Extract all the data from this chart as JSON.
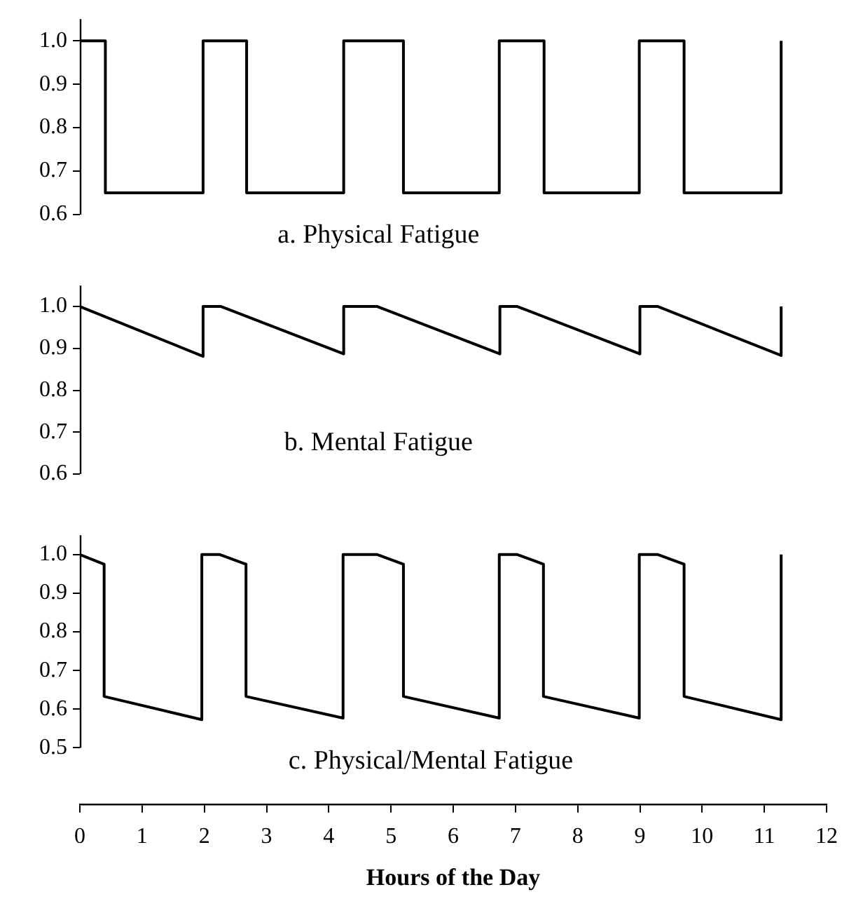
{
  "chart_data": [
    {
      "type": "line",
      "title": "a. Physical Fatigue",
      "x": [
        0,
        0.41,
        0.41,
        1.98,
        1.98,
        2.68,
        2.68,
        4.24,
        4.24,
        5.2,
        5.2,
        6.74,
        6.74,
        7.46,
        7.46,
        8.99,
        8.99,
        9.71,
        9.71,
        11.27,
        11.27
      ],
      "series": [
        {
          "color": "#000000",
          "values": [
            1.0,
            1.0,
            0.65,
            0.65,
            1.0,
            1.0,
            0.65,
            0.65,
            1.0,
            1.0,
            0.65,
            0.65,
            1.0,
            1.0,
            0.65,
            0.65,
            1.0,
            1.0,
            0.65,
            0.65,
            1.0
          ]
        }
      ],
      "xlim": [
        0,
        12
      ],
      "xticks": [
        0,
        1,
        2,
        3,
        4,
        5,
        6,
        7,
        8,
        9,
        10,
        11,
        12
      ],
      "ylim": [
        0.6,
        1.05
      ],
      "yticks": [
        {
          "value": 0.6,
          "label": "0.6"
        },
        {
          "value": 0.7,
          "label": "0.7"
        },
        {
          "value": 0.8,
          "label": "0.8"
        },
        {
          "value": 0.9,
          "label": "0.9"
        },
        {
          "value": 1.0,
          "label": "1.0"
        }
      ],
      "tick_labels": "y",
      "marker": "none",
      "grid": false,
      "legend": false
    },
    {
      "type": "line",
      "title": "b. Mental Fatigue",
      "x": [
        0,
        1.98,
        1.98,
        2.27,
        4.24,
        4.24,
        4.78,
        6.75,
        6.75,
        7.03,
        9.0,
        9.0,
        9.29,
        11.27,
        11.27
      ],
      "series": [
        {
          "color": "#000000",
          "values": [
            1.0,
            0.881,
            1.0,
            1.0,
            0.887,
            1.0,
            1.0,
            0.887,
            1.0,
            1.0,
            0.887,
            1.0,
            1.0,
            0.883,
            1.0
          ]
        }
      ],
      "xlim": [
        0,
        12
      ],
      "xticks": [
        0,
        1,
        2,
        3,
        4,
        5,
        6,
        7,
        8,
        9,
        10,
        11,
        12
      ],
      "ylim": [
        0.6,
        1.05
      ],
      "yticks": [
        {
          "value": 0.6,
          "label": "0.6"
        },
        {
          "value": 0.7,
          "label": "0.7"
        },
        {
          "value": 0.8,
          "label": "0.8"
        },
        {
          "value": 0.9,
          "label": "0.9"
        },
        {
          "value": 1.0,
          "label": "1.0"
        }
      ],
      "tick_labels": "y",
      "marker": "none",
      "grid": false,
      "legend": false
    },
    {
      "type": "line",
      "title": "c. Physical/Mental Fatigue",
      "xlabel": "Hours of the Day",
      "x": [
        0,
        0.39,
        0.39,
        1.96,
        1.96,
        2.25,
        2.67,
        2.67,
        4.23,
        4.23,
        4.78,
        5.2,
        5.2,
        6.74,
        6.74,
        7.03,
        7.45,
        7.45,
        8.99,
        8.99,
        9.29,
        9.71,
        9.71,
        11.27,
        11.27
      ],
      "series": [
        {
          "color": "#000000",
          "values": [
            1.0,
            0.975,
            0.633,
            0.573,
            1.0,
            1.0,
            0.975,
            0.633,
            0.577,
            1.0,
            1.0,
            0.975,
            0.633,
            0.577,
            1.0,
            1.0,
            0.975,
            0.633,
            0.577,
            1.0,
            1.0,
            0.975,
            0.633,
            0.573,
            1.0
          ]
        }
      ],
      "xlim": [
        0,
        12
      ],
      "xticks": [
        0,
        1,
        2,
        3,
        4,
        5,
        6,
        7,
        8,
        9,
        10,
        11,
        12
      ],
      "ylim": [
        0.5,
        1.05
      ],
      "yticks": [
        {
          "value": 0.5,
          "label": "0.5"
        },
        {
          "value": 0.6,
          "label": "0.6"
        },
        {
          "value": 0.7,
          "label": "0.7"
        },
        {
          "value": 0.8,
          "label": "0.8"
        },
        {
          "value": 0.9,
          "label": "0.9"
        },
        {
          "value": 1.0,
          "label": "1.0"
        }
      ],
      "marker": "none",
      "grid": false,
      "legend": false
    }
  ]
}
